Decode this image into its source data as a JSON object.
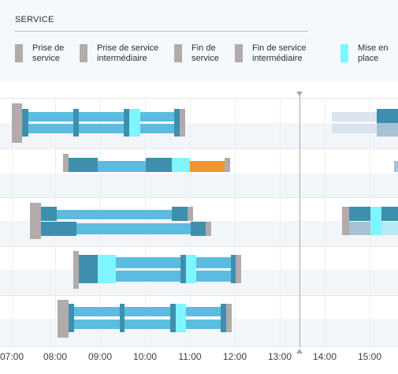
{
  "legend": {
    "title": "SERVICE",
    "items": [
      {
        "label": "Prise de\nservice",
        "color": "#b1abab",
        "icon": "service-start-swatch"
      },
      {
        "label": "Prise de service\nintermédiaire",
        "color": "#b1abab",
        "icon": "intermediate-start-swatch"
      },
      {
        "label": "Fin de\nservice",
        "color": "#b1abab",
        "icon": "service-end-swatch"
      },
      {
        "label": "Fin de service\nintermédiaire",
        "color": "#b1abab",
        "icon": "intermediate-end-swatch"
      },
      {
        "label": "Mise en\nplace",
        "color": "#7ff5ff",
        "icon": "setup-swatch"
      }
    ]
  },
  "colors": {
    "service_start": "#b1abab",
    "driving": "#5bbce0",
    "driving_dark": "#3e8fae",
    "setup": "#7ff5ff",
    "alert": "#f09431",
    "faded": "#dbe3ed",
    "faded_dark": "#a7c3d3",
    "row_alt": "#f3f6f9"
  },
  "timeline": {
    "ticks": [
      "07:00",
      "08:00",
      "09:00",
      "10:00",
      "11:00",
      "12:00",
      "13:00",
      "14:00",
      "15:00"
    ],
    "current_time_marker": true
  }
}
